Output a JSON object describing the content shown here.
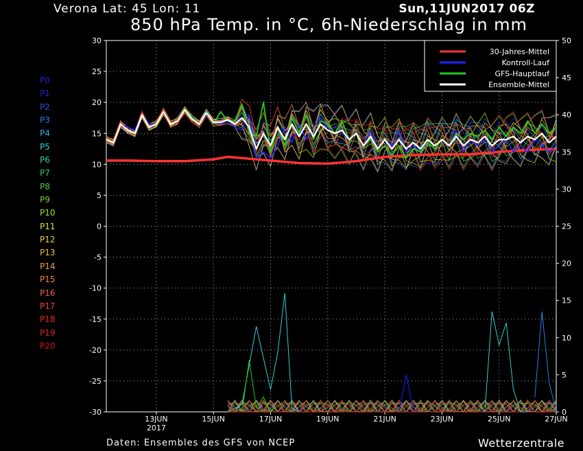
{
  "header": {
    "location": "Verona  Lat: 45 Lon: 11",
    "run": "Sun,11JUN2017 06Z",
    "title": "850 hPa Temp. in °C, 6h-Niederschlag in mm"
  },
  "footer": {
    "source": "Daten: Ensembles des GFS von NCEP",
    "brand": "Wetterzentrale"
  },
  "colors": {
    "climate": "#ff3333",
    "control": "#2222ff",
    "main_run": "#22cc22",
    "ensemble_mean": "#ffffff",
    "background": "#000000"
  },
  "members": [
    {
      "label": "P0",
      "color": "#2020d0"
    },
    {
      "label": "P1",
      "color": "#2020d0"
    },
    {
      "label": "P2",
      "color": "#2050e0"
    },
    {
      "label": "P3",
      "color": "#2080e8"
    },
    {
      "label": "P4",
      "color": "#2ab0e8"
    },
    {
      "label": "P5",
      "color": "#30d0d0"
    },
    {
      "label": "P6",
      "color": "#30d090"
    },
    {
      "label": "P7",
      "color": "#30d060"
    },
    {
      "label": "P8",
      "color": "#40d040"
    },
    {
      "label": "P9",
      "color": "#70d030"
    },
    {
      "label": "P10",
      "color": "#a0e020"
    },
    {
      "label": "P11",
      "color": "#e0e020"
    },
    {
      "label": "P12",
      "color": "#f0d040"
    },
    {
      "label": "P13",
      "color": "#f0c040"
    },
    {
      "label": "P14",
      "color": "#f0a040"
    },
    {
      "label": "P15",
      "color": "#f08040"
    },
    {
      "label": "P16",
      "color": "#f06040"
    },
    {
      "label": "P17",
      "color": "#f04040"
    },
    {
      "label": "P18",
      "color": "#f02020"
    },
    {
      "label": "P19",
      "color": "#e02020"
    },
    {
      "label": "P20",
      "color": "#d01010"
    }
  ],
  "chart_data": {
    "type": "line",
    "title": "850 hPa Temp. in °C, 6h-Niederschlag in mm",
    "grid": true,
    "legend_position": "top-right",
    "y_left": {
      "range": [
        -30,
        30
      ],
      "ticks": [
        30,
        25,
        20,
        15,
        10,
        5,
        0,
        -5,
        -10,
        -15,
        -20,
        -25,
        -30
      ],
      "label": "850 hPa Temp. in °C"
    },
    "y_right": {
      "range": [
        0,
        50
      ],
      "ticks": [
        50,
        45,
        40,
        35,
        30,
        25,
        20,
        15,
        10,
        5,
        0
      ],
      "label": "6h-Niederschlag in mm"
    },
    "x": {
      "range_days": [
        11.25,
        27.0
      ],
      "ticks": [
        {
          "day": 13,
          "label": "13JUN",
          "sublabel": "2017"
        },
        {
          "day": 15,
          "label": "15JUN"
        },
        {
          "day": 17,
          "label": "17JUN"
        },
        {
          "day": 19,
          "label": "19JUN"
        },
        {
          "day": 21,
          "label": "21JUN"
        },
        {
          "day": 23,
          "label": "23JUN"
        },
        {
          "day": 25,
          "label": "25JUN"
        },
        {
          "day": 27,
          "label": "27JUN"
        }
      ]
    },
    "legend": [
      {
        "name": "30-Jahres-Mittel",
        "color": "#ff3333"
      },
      {
        "name": "Kontroll-Lauf",
        "color": "#2222ff"
      },
      {
        "name": "GFS-Hauptlauf",
        "color": "#22cc22"
      },
      {
        "name": "Ensemble-Mittel",
        "color": "#ffffff"
      }
    ],
    "series": [
      {
        "name": "30-Jahres-Mittel",
        "axis": "left",
        "x": [
          11.25,
          12,
          13,
          14,
          15,
          15.5,
          16,
          17,
          18,
          19,
          20,
          21,
          22,
          23,
          24,
          25,
          26,
          27
        ],
        "values": [
          10.6,
          10.6,
          10.5,
          10.5,
          10.8,
          11.2,
          11.0,
          10.6,
          10.2,
          10.1,
          10.5,
          11.2,
          11.5,
          11.6,
          11.6,
          12.0,
          12.3,
          12.5
        ]
      },
      {
        "name": "Kontroll-Lauf",
        "axis": "left",
        "x": [
          11.25,
          11.5,
          11.75,
          12,
          12.25,
          12.5,
          12.75,
          13,
          13.25,
          13.5,
          13.75,
          14,
          14.25,
          14.5,
          14.75,
          15,
          15.25,
          15.5,
          15.75,
          16,
          16.25,
          16.5,
          16.75,
          17,
          17.25,
          17.5,
          17.75,
          18,
          18.25,
          18.5,
          18.75,
          19,
          19.25,
          19.5,
          19.75,
          20,
          20.25,
          20.5,
          20.75,
          21,
          21.25,
          21.5,
          21.75,
          22,
          22.25,
          22.5,
          22.75,
          23,
          23.25,
          23.5,
          23.75,
          24,
          24.25,
          24.5,
          24.75,
          25,
          25.25,
          25.5,
          25.75,
          26,
          26.25,
          26.5,
          26.75,
          27
        ],
        "values": [
          14,
          13.5,
          16.5,
          16,
          15.5,
          18,
          16.5,
          16.5,
          18.5,
          16.5,
          17,
          19,
          17.5,
          16.5,
          18,
          17,
          16.5,
          17,
          16,
          15.5,
          18,
          11,
          12,
          11,
          13,
          16,
          13.5,
          16.5,
          14,
          16,
          17.5,
          15.5,
          16,
          15,
          14,
          15,
          13,
          15.5,
          12.5,
          14,
          13,
          15.5,
          12,
          13,
          12,
          14,
          13,
          14,
          13,
          15.5,
          12,
          14,
          13,
          14,
          12,
          13,
          14,
          12,
          13,
          12,
          14,
          13,
          12,
          13
        ]
      },
      {
        "name": "GFS-Hauptlauf",
        "axis": "left",
        "x": [
          11.25,
          11.5,
          11.75,
          12,
          12.25,
          12.5,
          12.75,
          13,
          13.25,
          13.5,
          13.75,
          14,
          14.25,
          14.5,
          14.75,
          15,
          15.25,
          15.5,
          15.75,
          16,
          16.25,
          16.5,
          16.75,
          17,
          17.25,
          17.5,
          17.75,
          18,
          18.25,
          18.5,
          18.75,
          19,
          19.25,
          19.5,
          19.75,
          20,
          20.25,
          20.5,
          20.75,
          21,
          21.25,
          21.5,
          21.75,
          22,
          22.25,
          22.5,
          22.75,
          23,
          23.25,
          23.5,
          23.75,
          24,
          24.25,
          24.5,
          24.75,
          25,
          25.25,
          25.5,
          25.75,
          26,
          26.25,
          26.5,
          26.75,
          27
        ],
        "values": [
          14,
          13.5,
          16.5,
          15.5,
          15,
          18,
          16,
          16.5,
          18.5,
          16.5,
          17,
          19,
          17.5,
          16.5,
          18.5,
          16.5,
          18.5,
          17,
          17,
          19.5,
          15,
          14.5,
          20,
          12,
          16,
          13,
          17.5,
          15,
          18,
          14,
          17,
          16.5,
          15,
          17,
          14,
          15,
          13,
          14,
          12,
          13,
          11.5,
          13,
          11,
          12.5,
          12,
          13.5,
          12.5,
          14,
          13,
          15,
          14,
          15,
          14.5,
          15.5,
          14,
          16,
          14.5,
          16,
          15,
          17,
          15,
          16.5,
          15,
          16
        ]
      },
      {
        "name": "Ensemble-Mittel",
        "axis": "left",
        "x": [
          11.25,
          11.5,
          11.75,
          12,
          12.25,
          12.5,
          12.75,
          13,
          13.25,
          13.5,
          13.75,
          14,
          14.25,
          14.5,
          14.75,
          15,
          15.25,
          15.5,
          15.75,
          16,
          16.25,
          16.5,
          16.75,
          17,
          17.25,
          17.5,
          17.75,
          18,
          18.25,
          18.5,
          18.75,
          19,
          19.25,
          19.5,
          19.75,
          20,
          20.25,
          20.5,
          20.75,
          21,
          21.25,
          21.5,
          21.75,
          22,
          22.25,
          22.5,
          22.75,
          23,
          23.25,
          23.5,
          23.75,
          24,
          24.25,
          24.5,
          24.75,
          25,
          25.25,
          25.5,
          25.75,
          26,
          26.25,
          26.5,
          26.75,
          27
        ],
        "values": [
          14,
          13.5,
          16.5,
          15.5,
          15,
          18,
          16,
          16.5,
          18.5,
          16.5,
          17,
          18.8,
          17.3,
          16.5,
          18.3,
          16.8,
          16.8,
          17.2,
          16.5,
          17.5,
          16,
          12.5,
          15,
          13,
          16,
          14,
          16.5,
          14.5,
          16.5,
          14.5,
          16.5,
          15.5,
          15,
          15.5,
          14,
          15,
          13,
          14.5,
          12.5,
          14,
          12.5,
          14,
          12.5,
          13.5,
          12.5,
          14,
          13,
          14,
          13,
          14.5,
          13,
          14,
          13.5,
          14.5,
          13,
          14,
          14,
          14.5,
          13.5,
          14.5,
          14,
          15,
          13.5,
          14.5
        ]
      }
    ],
    "precip_series_note": "ensemble member 6h precipitation on right axis (mm)",
    "precip_highlights": [
      {
        "member": "P5",
        "x": [
          15.5,
          16,
          16.5,
          17,
          17.25,
          17.5,
          17.75,
          18
        ],
        "values": [
          0,
          1,
          11.5,
          3,
          8,
          16,
          0.5,
          0
        ]
      },
      {
        "member": "P5b",
        "x": [
          24.5,
          24.75,
          25,
          25.25,
          25.5,
          25.75,
          26
        ],
        "values": [
          0,
          13.5,
          9,
          12,
          3,
          0,
          0
        ]
      },
      {
        "member": "P4",
        "x": [
          26.25,
          26.5,
          26.75,
          27
        ],
        "values": [
          2,
          13.5,
          4,
          0
        ]
      },
      {
        "member": "GFS-Hauptlauf",
        "x": [
          16,
          16.25,
          16.5,
          16.75,
          17
        ],
        "values": [
          0,
          7,
          0.5,
          2,
          0
        ]
      },
      {
        "member": "Kontroll-Lauf",
        "x": [
          21.5,
          21.75,
          22
        ],
        "values": [
          0,
          5,
          0
        ]
      }
    ]
  }
}
